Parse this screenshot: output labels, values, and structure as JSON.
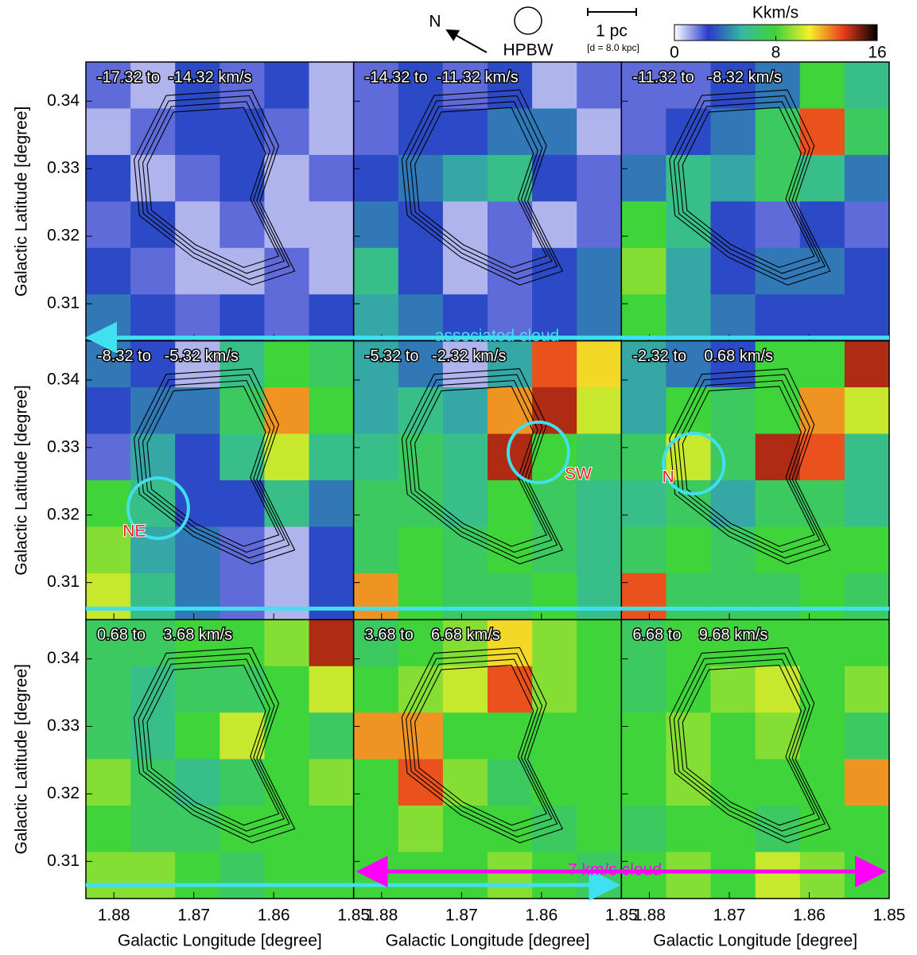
{
  "chart_data": {
    "type": "heatmap",
    "xlabel": "Galactic Longitude [degree]",
    "ylabel": "Galactic Latitude [degree]",
    "xlim": [
      1.8835,
      1.85
    ],
    "ylim": [
      0.3045,
      0.3458
    ],
    "xticks": [
      1.88,
      1.87,
      1.86,
      1.85
    ],
    "yticks": [
      0.31,
      0.32,
      0.33,
      0.34
    ],
    "colorbar": {
      "label": "Kkm/s",
      "lim": [
        0,
        16
      ],
      "ticks": [
        0,
        8,
        16
      ],
      "colors": [
        "#ffffff",
        "#2a3acb",
        "#36b8a0",
        "#3fd43a",
        "#f6ee2a",
        "#e83a1a",
        "#000000"
      ]
    },
    "header": {
      "north": "N",
      "beam": "HPBW",
      "scale": "1 pc",
      "distance": "[d = 8.0 kpc]"
    },
    "annotations": {
      "associated": "associated cloud",
      "cloud7": "7 km/s cloud"
    },
    "panels": [
      {
        "label": "-17.32 to  -14.32 km/s",
        "grid": [
          [
            2,
            1,
            3,
            2,
            3,
            1
          ],
          [
            1,
            2,
            3,
            3,
            2,
            1
          ],
          [
            3,
            1,
            2,
            3,
            1,
            2
          ],
          [
            2,
            3,
            1,
            2,
            1,
            1
          ],
          [
            3,
            2,
            1,
            1,
            2,
            1
          ],
          [
            4,
            3,
            2,
            3,
            2,
            3
          ]
        ]
      },
      {
        "label": "-14.32 to  -11.32 km/s",
        "grid": [
          [
            2,
            3,
            2,
            3,
            1,
            2
          ],
          [
            2,
            3,
            3,
            4,
            4,
            1
          ],
          [
            3,
            4,
            5,
            6,
            3,
            2
          ],
          [
            4,
            3,
            1,
            2,
            1,
            2
          ],
          [
            6,
            3,
            1,
            2,
            3,
            4
          ],
          [
            5,
            4,
            3,
            2,
            3,
            4
          ]
        ]
      },
      {
        "label": "-11.32 to   -8.32 km/s",
        "grid": [
          [
            2,
            2,
            3,
            4,
            8,
            6
          ],
          [
            2,
            3,
            4,
            7,
            13,
            7
          ],
          [
            4,
            6,
            5,
            7,
            6,
            4
          ],
          [
            8,
            6,
            3,
            2,
            3,
            2
          ],
          [
            9,
            5,
            3,
            4,
            4,
            3
          ],
          [
            8,
            5,
            4,
            3,
            3,
            3
          ]
        ]
      },
      {
        "label": "-8.32 to   -5.32 km/s",
        "region": "NE",
        "grid": [
          [
            4,
            3,
            1,
            6,
            8,
            7
          ],
          [
            3,
            4,
            4,
            7,
            12,
            8
          ],
          [
            2,
            5,
            3,
            6,
            10,
            6
          ],
          [
            8,
            6,
            3,
            3,
            6,
            4
          ],
          [
            9,
            5,
            4,
            2,
            1,
            3
          ],
          [
            10,
            6,
            4,
            2,
            1,
            3
          ]
        ]
      },
      {
        "label": "-5.32 to   -2.32 km/s",
        "region": "SW",
        "grid": [
          [
            5,
            4,
            1,
            5,
            13,
            11
          ],
          [
            5,
            6,
            5,
            12,
            14,
            10
          ],
          [
            6,
            7,
            6,
            14,
            8,
            7
          ],
          [
            7,
            7,
            6,
            8,
            7,
            6
          ],
          [
            7,
            8,
            7,
            8,
            7,
            6
          ],
          [
            12,
            8,
            7,
            7,
            8,
            6
          ]
        ]
      },
      {
        "label": "-2.32 to    0.68 km/s",
        "region": "N",
        "grid": [
          [
            5,
            4,
            3,
            8,
            8,
            14
          ],
          [
            5,
            8,
            7,
            8,
            12,
            10
          ],
          [
            7,
            10,
            7,
            14,
            13,
            6
          ],
          [
            6,
            7,
            5,
            7,
            7,
            6
          ],
          [
            7,
            8,
            7,
            8,
            8,
            8
          ],
          [
            13,
            7,
            7,
            7,
            8,
            7
          ]
        ]
      },
      {
        "label": "0.68 to    3.68 km/s",
        "grid": [
          [
            7,
            7,
            8,
            8,
            9,
            14
          ],
          [
            7,
            6,
            7,
            7,
            8,
            10
          ],
          [
            7,
            6,
            8,
            10,
            8,
            7
          ],
          [
            9,
            7,
            6,
            7,
            8,
            9
          ],
          [
            8,
            7,
            7,
            8,
            8,
            8
          ],
          [
            9,
            9,
            8,
            7,
            8,
            8
          ]
        ]
      },
      {
        "label": "3.68 to    6.68 km/s",
        "grid": [
          [
            7,
            8,
            9,
            11,
            9,
            8
          ],
          [
            8,
            9,
            10,
            13,
            9,
            8
          ],
          [
            12,
            12,
            8,
            8,
            8,
            8
          ],
          [
            8,
            13,
            9,
            7,
            8,
            8
          ],
          [
            8,
            9,
            8,
            8,
            7,
            8
          ],
          [
            8,
            8,
            8,
            9,
            8,
            7
          ]
        ]
      },
      {
        "label": "6.68 to    9.68 km/s",
        "grid": [
          [
            7,
            8,
            8,
            8,
            8,
            8
          ],
          [
            7,
            8,
            9,
            10,
            8,
            9
          ],
          [
            8,
            9,
            8,
            9,
            8,
            7
          ],
          [
            8,
            9,
            8,
            8,
            8,
            12
          ],
          [
            7,
            8,
            8,
            7,
            8,
            8
          ],
          [
            8,
            9,
            8,
            10,
            9,
            8
          ]
        ]
      }
    ]
  }
}
